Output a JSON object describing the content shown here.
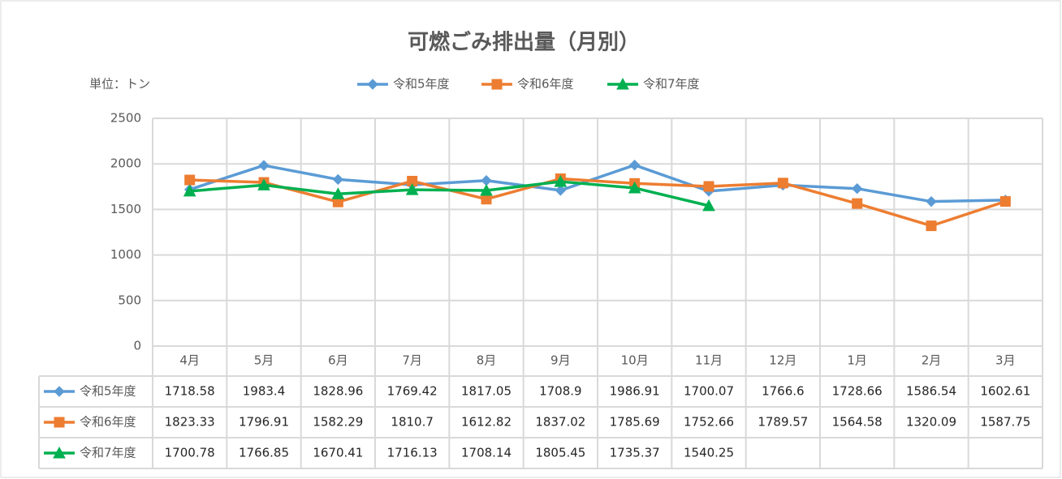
{
  "chart_data": {
    "type": "line",
    "title": "可燃ごみ排出量（月別）",
    "unit_label": "単位：トン",
    "categories": [
      "4月",
      "5月",
      "6月",
      "7月",
      "8月",
      "9月",
      "10月",
      "11月",
      "12月",
      "1月",
      "2月",
      "3月"
    ],
    "series": [
      {
        "name": "令和5年度",
        "color": "#5b9bd5",
        "marker": "diamond",
        "values": [
          1718.58,
          1983.4,
          1828.96,
          1769.42,
          1817.05,
          1708.9,
          1986.91,
          1700.07,
          1766.6,
          1728.66,
          1586.54,
          1602.61
        ]
      },
      {
        "name": "令和6年度",
        "color": "#ed7d31",
        "marker": "square",
        "values": [
          1823.33,
          1796.91,
          1582.29,
          1810.7,
          1612.82,
          1837.02,
          1785.69,
          1752.66,
          1789.57,
          1564.58,
          1320.09,
          1587.75
        ]
      },
      {
        "name": "令和7年度",
        "color": "#00b050",
        "marker": "triangle",
        "values": [
          1700.78,
          1766.85,
          1670.41,
          1716.13,
          1708.14,
          1805.45,
          1735.37,
          1540.25,
          null,
          null,
          null,
          null
        ]
      }
    ],
    "ylim": [
      0,
      2500
    ],
    "yticks": [
      0,
      500,
      1000,
      1500,
      2000,
      2500
    ],
    "grid": true,
    "legend": "top",
    "data_table": true
  }
}
